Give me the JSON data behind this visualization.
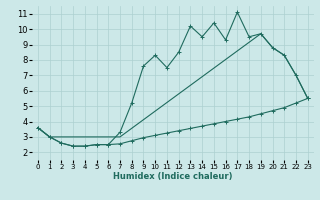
{
  "xlabel": "Humidex (Indice chaleur)",
  "x_ticks": [
    0,
    1,
    2,
    3,
    4,
    5,
    6,
    7,
    8,
    9,
    10,
    11,
    12,
    13,
    14,
    15,
    16,
    17,
    18,
    19,
    20,
    21,
    22,
    23
  ],
  "y_ticks": [
    2,
    3,
    4,
    5,
    6,
    7,
    8,
    9,
    10,
    11
  ],
  "xlim": [
    -0.5,
    23.5
  ],
  "ylim": [
    1.5,
    11.5
  ],
  "bg_color": "#cce8e8",
  "line_color": "#1f6b5e",
  "grid_color": "#add0d0",
  "line1_x": [
    0,
    1,
    2,
    3,
    4,
    5,
    6,
    7,
    8,
    9,
    10,
    11,
    12,
    13,
    14,
    15,
    16,
    17,
    18,
    19,
    20,
    21,
    22,
    23
  ],
  "line1_y": [
    3.6,
    3.0,
    2.6,
    2.4,
    2.4,
    2.5,
    2.5,
    2.55,
    2.75,
    2.95,
    3.1,
    3.25,
    3.4,
    3.55,
    3.7,
    3.85,
    4.0,
    4.15,
    4.3,
    4.5,
    4.7,
    4.9,
    5.2,
    5.5
  ],
  "line2_x": [
    0,
    1,
    2,
    3,
    4,
    5,
    6,
    7,
    8,
    9,
    10,
    11,
    12,
    13,
    14,
    15,
    16,
    17,
    18,
    19,
    20,
    21,
    22,
    23
  ],
  "line2_y": [
    3.6,
    3.0,
    2.6,
    2.4,
    2.4,
    2.5,
    2.5,
    3.3,
    5.2,
    7.6,
    8.3,
    7.5,
    8.5,
    10.2,
    9.5,
    10.4,
    9.3,
    11.1,
    9.5,
    9.7,
    8.8,
    8.3,
    7.0,
    5.5
  ],
  "line3_x": [
    0,
    1,
    7,
    19,
    20,
    21,
    22,
    23
  ],
  "line3_y": [
    3.6,
    3.0,
    3.0,
    9.7,
    8.8,
    8.3,
    7.0,
    5.5
  ]
}
